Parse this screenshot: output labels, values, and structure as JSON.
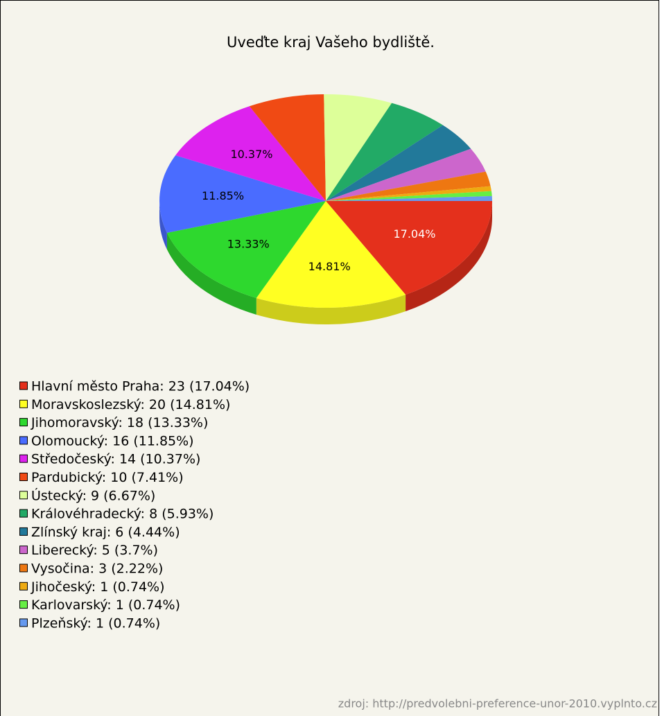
{
  "chart_data": {
    "type": "pie",
    "title": "Uveďte kraj Vašeho bydliště.",
    "categories": [
      "Hlavní město Praha: 23 (17.04%)",
      "Moravskoslezský: 20 (14.81%)",
      "Jihomoravský: 18 (13.33%)",
      "Olomoucký: 16 (11.85%)",
      "Středočeský: 14 (10.37%)",
      "Pardubický: 10 (7.41%)",
      "Ústecký: 9 (6.67%)",
      "Královéhradecký: 8 (5.93%)",
      "Zlínský kraj: 6 (4.44%)",
      "Liberecký: 5 (3.7%)",
      "Vysočina: 3 (2.22%)",
      "Jihočeský: 1 (0.74%)",
      "Karlovarský: 1 (0.74%)",
      "Plzeňský: 1 (0.74%)"
    ],
    "values": [
      17.04,
      14.81,
      13.33,
      11.85,
      10.37,
      7.41,
      6.67,
      5.93,
      4.44,
      3.7,
      2.22,
      0.74,
      0.74,
      0.74
    ],
    "value_labels": [
      "17.04%",
      "14.81%",
      "13.33%",
      "11.85%",
      "10.37%",
      null,
      null,
      null,
      null,
      null,
      null,
      null,
      null,
      null
    ],
    "colors": [
      "#e4301c",
      "#ffff22",
      "#2ed82e",
      "#4a6cff",
      "#dd22ee",
      "#f04a14",
      "#ddff99",
      "#22aa66",
      "#22799a",
      "#cc66cc",
      "#ee7711",
      "#eeaa11",
      "#66ee44",
      "#6699ee"
    ],
    "source": "zdroj: http://predvolebni-preference-unor-2010.vyplnto.cz"
  }
}
